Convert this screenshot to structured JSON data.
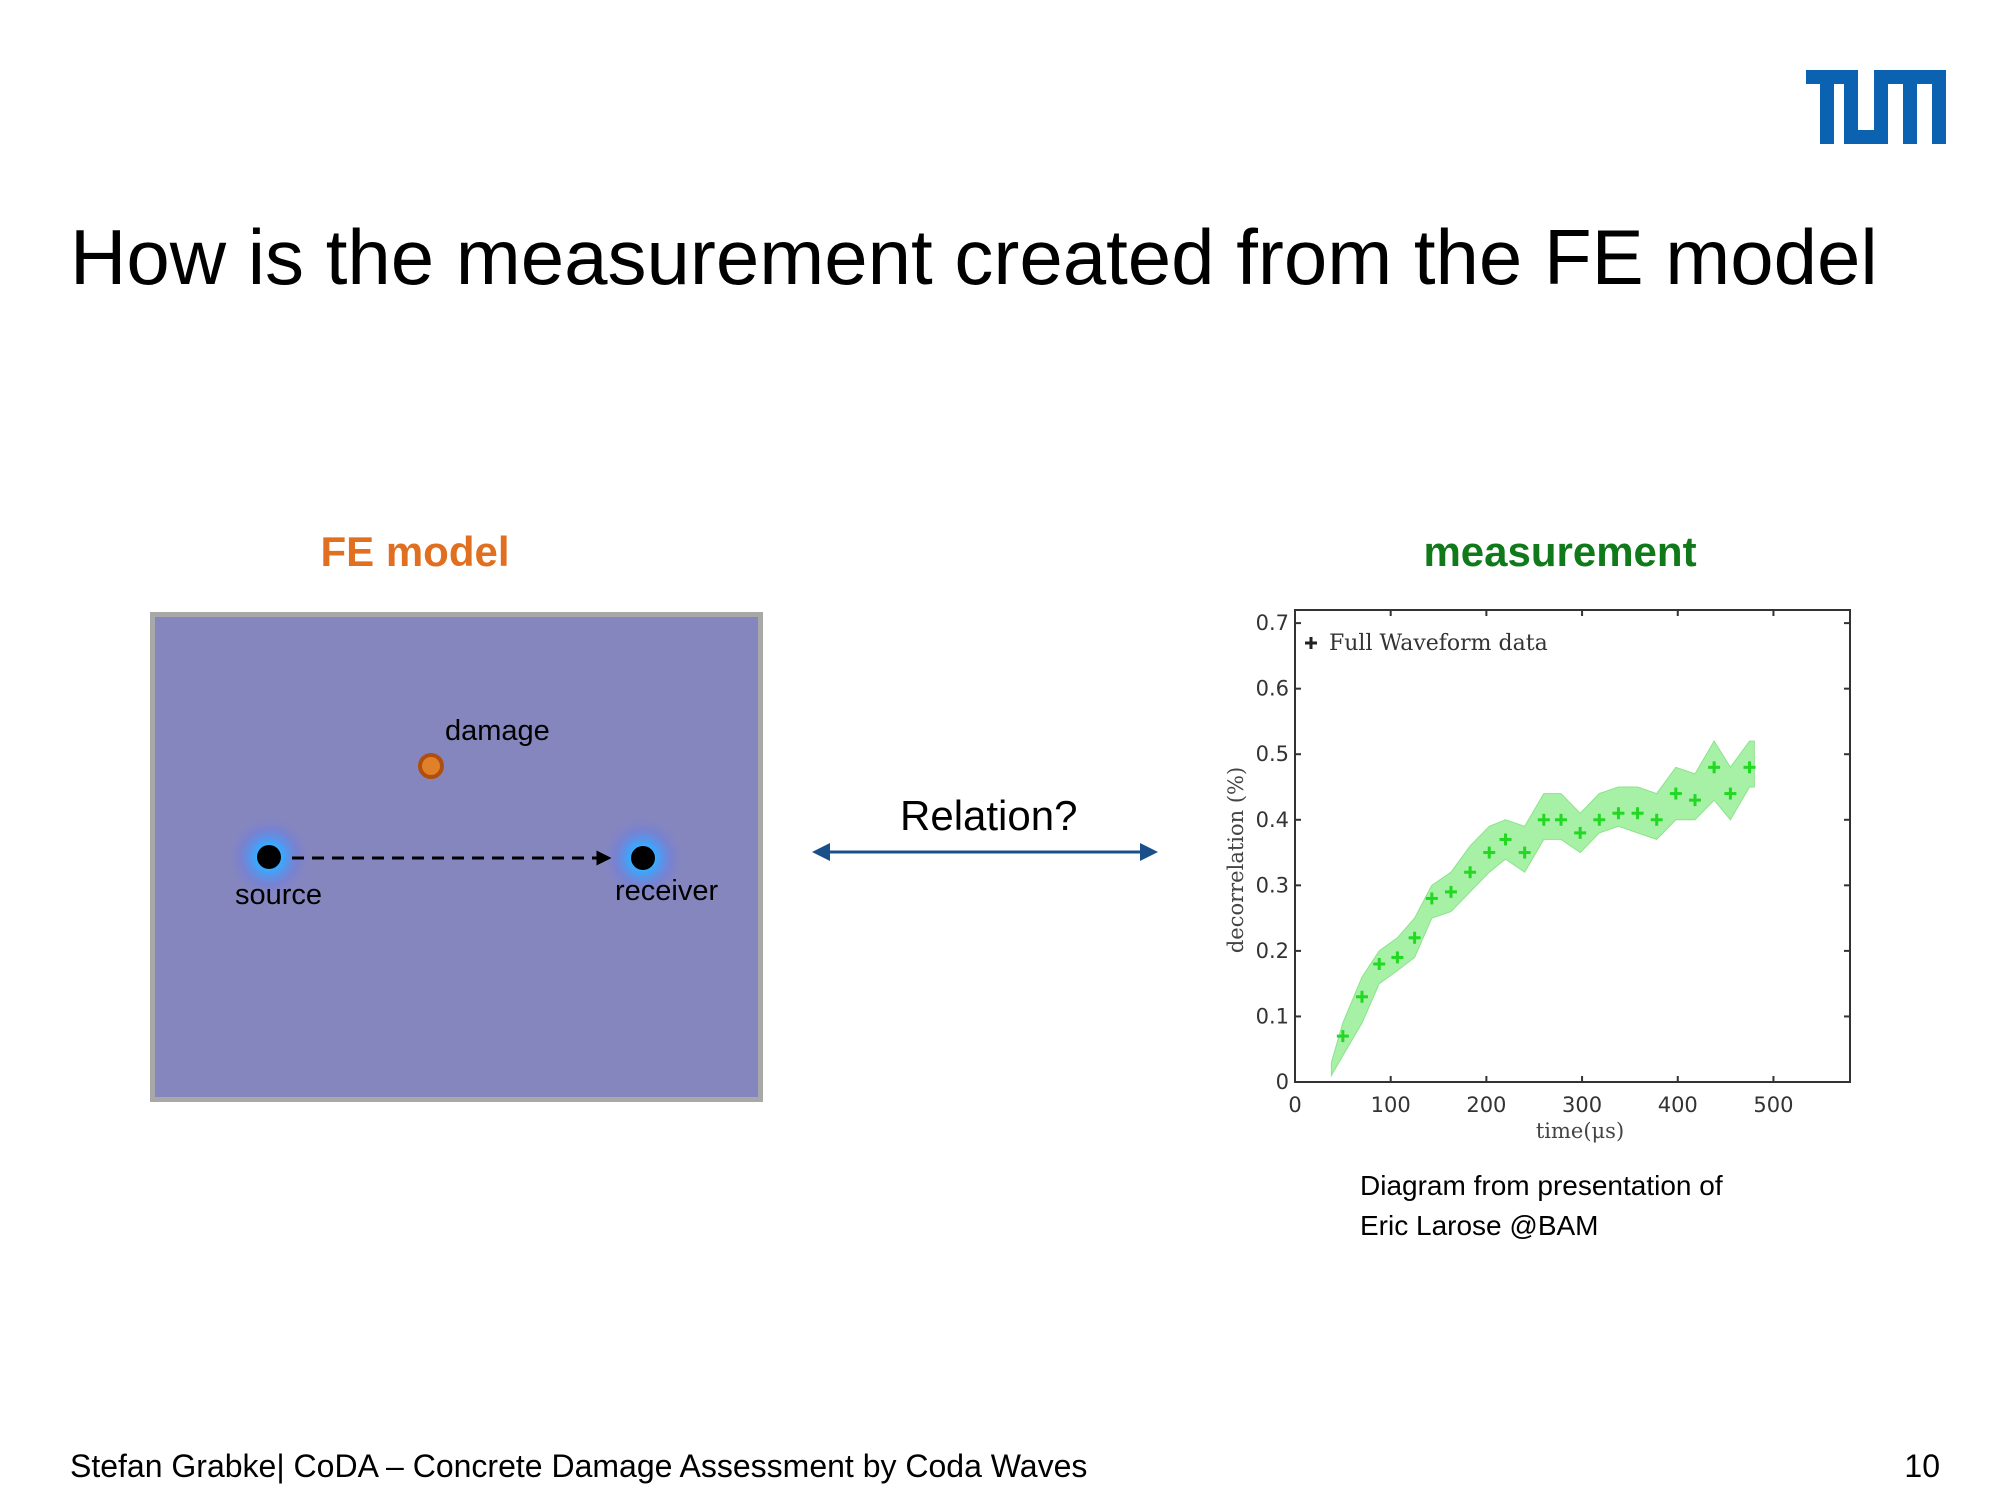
{
  "slide": {
    "title": "How is the measurement created from the FE model",
    "logo_text": "TUM",
    "brand_color": "#0b62b0"
  },
  "fe_model": {
    "heading": "FE model",
    "heading_color": "#e07020",
    "damage_label": "damage",
    "source_label": "source",
    "receiver_label": "receiver"
  },
  "relation": {
    "label": "Relation?"
  },
  "measurement": {
    "heading": "measurement",
    "heading_color": "#107a1a",
    "credit_line1": "Diagram from presentation of",
    "credit_line2": "Eric Larose @BAM"
  },
  "chart_data": {
    "type": "scatter",
    "title": "",
    "xlabel": "time(μs)",
    "ylabel": "decorrelation (%)",
    "xlim": [
      0,
      580
    ],
    "ylim": [
      0,
      0.72
    ],
    "xticks": [
      0,
      100,
      200,
      300,
      400,
      500
    ],
    "yticks": [
      0,
      0.1,
      0.2,
      0.3,
      0.4,
      0.5,
      0.6,
      0.7
    ],
    "xtick_labels": [
      "0",
      "100",
      "200",
      "300",
      "400",
      "500"
    ],
    "ytick_labels": [
      "0",
      "0.1",
      "0.2",
      "0.3",
      "0.4",
      "0.5",
      "0.6",
      "0.7"
    ],
    "legend": "top-left",
    "grid": false,
    "series": [
      {
        "name": "Full Waveform data",
        "color": "#22d822",
        "band_color": "#9ef09e",
        "x": [
          50,
          70,
          88,
          107,
          125,
          143,
          163,
          183,
          203,
          220,
          240,
          260,
          278,
          298,
          318,
          338,
          358,
          378,
          398,
          418,
          438,
          455,
          475
        ],
        "y": [
          0.07,
          0.13,
          0.18,
          0.19,
          0.22,
          0.28,
          0.29,
          0.32,
          0.35,
          0.37,
          0.35,
          0.4,
          0.4,
          0.38,
          0.4,
          0.41,
          0.41,
          0.4,
          0.44,
          0.43,
          0.48,
          0.44,
          0.48
        ],
        "band_x": [
          38,
          50,
          70,
          88,
          107,
          125,
          143,
          163,
          183,
          203,
          220,
          240,
          260,
          278,
          298,
          318,
          338,
          358,
          378,
          398,
          418,
          438,
          455,
          475,
          480
        ],
        "band_lower": [
          0.01,
          0.04,
          0.09,
          0.15,
          0.17,
          0.19,
          0.25,
          0.26,
          0.29,
          0.32,
          0.34,
          0.32,
          0.37,
          0.37,
          0.35,
          0.38,
          0.39,
          0.38,
          0.37,
          0.4,
          0.4,
          0.43,
          0.4,
          0.45,
          0.45
        ],
        "band_upper": [
          0.03,
          0.09,
          0.16,
          0.2,
          0.22,
          0.25,
          0.3,
          0.32,
          0.36,
          0.39,
          0.4,
          0.39,
          0.44,
          0.44,
          0.41,
          0.44,
          0.45,
          0.45,
          0.44,
          0.48,
          0.47,
          0.52,
          0.48,
          0.52,
          0.52
        ]
      }
    ]
  },
  "footer": {
    "text": "Stefan Grabke| CoDA – Concrete Damage Assessment by Coda Waves",
    "page_number": "10"
  }
}
